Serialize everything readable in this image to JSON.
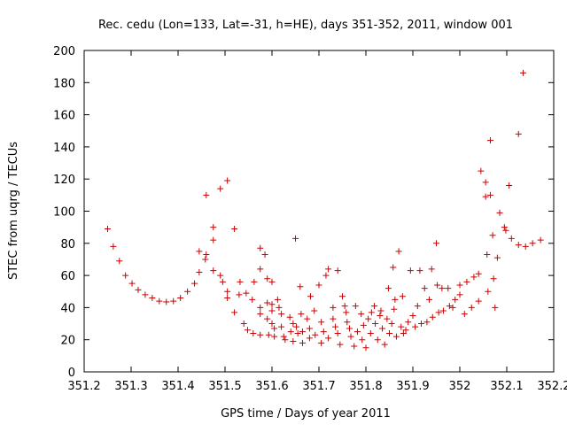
{
  "chart_data": {
    "type": "scatter",
    "title": "Rec. cedu (Lon=133, Lat=-31, h=HE), days 351-352, 2011, window 001",
    "xlabel": "GPS time / Days of year 2011",
    "ylabel": "STEC from uqrg / TECUs",
    "xlim": [
      351.2,
      352.2
    ],
    "ylim": [
      0,
      200
    ],
    "x_ticks": [
      "351.2",
      "351.3",
      "351.4",
      "351.5",
      "351.6",
      "351.7",
      "351.8",
      "351.9",
      "352",
      "352.1",
      "352.2"
    ],
    "y_ticks": [
      "0",
      "20",
      "40",
      "60",
      "80",
      "100",
      "120",
      "140",
      "160",
      "180",
      "200"
    ],
    "grid": false,
    "legend": "none",
    "marker": "+",
    "color": "#cc0000",
    "points": [
      [
        351.25,
        89
      ],
      [
        351.262,
        78
      ],
      [
        351.275,
        69
      ],
      [
        351.288,
        60
      ],
      [
        351.302,
        55
      ],
      [
        351.315,
        51
      ],
      [
        351.33,
        48
      ],
      [
        351.345,
        46
      ],
      [
        351.36,
        44
      ],
      [
        351.375,
        43.5
      ],
      [
        351.39,
        44
      ],
      [
        351.405,
        46
      ],
      [
        351.42,
        50
      ],
      [
        351.435,
        55
      ],
      [
        351.445,
        62
      ],
      [
        351.445,
        75
      ],
      [
        351.458,
        70
      ],
      [
        351.46,
        73
      ],
      [
        351.46,
        110
      ],
      [
        351.475,
        90
      ],
      [
        351.475,
        82
      ],
      [
        351.475,
        63
      ],
      [
        351.49,
        114
      ],
      [
        351.49,
        60
      ],
      [
        351.495,
        56
      ],
      [
        351.505,
        119
      ],
      [
        351.505,
        50
      ],
      [
        351.505,
        46
      ],
      [
        351.52,
        89
      ],
      [
        351.52,
        37
      ],
      [
        351.53,
        48
      ],
      [
        351.532,
        56
      ],
      [
        351.54,
        30
      ],
      [
        351.545,
        49
      ],
      [
        351.548,
        26
      ],
      [
        351.558,
        45
      ],
      [
        351.56,
        24
      ],
      [
        351.562,
        56
      ],
      [
        351.575,
        77
      ],
      [
        351.575,
        64
      ],
      [
        351.575,
        40
      ],
      [
        351.575,
        36
      ],
      [
        351.575,
        23
      ],
      [
        351.585,
        73
      ],
      [
        351.59,
        58
      ],
      [
        351.59,
        43
      ],
      [
        351.59,
        33
      ],
      [
        351.593,
        23
      ],
      [
        351.6,
        56
      ],
      [
        351.6,
        42
      ],
      [
        351.6,
        38
      ],
      [
        351.6,
        30
      ],
      [
        351.605,
        27
      ],
      [
        351.605,
        22
      ],
      [
        351.612,
        45
      ],
      [
        351.615,
        40
      ],
      [
        351.62,
        36
      ],
      [
        351.62,
        28
      ],
      [
        351.625,
        22
      ],
      [
        351.628,
        20
      ],
      [
        351.638,
        34
      ],
      [
        351.64,
        25
      ],
      [
        351.645,
        30
      ],
      [
        351.645,
        19
      ],
      [
        351.65,
        83
      ],
      [
        351.652,
        28
      ],
      [
        351.655,
        24
      ],
      [
        351.66,
        53
      ],
      [
        351.662,
        36
      ],
      [
        351.665,
        25
      ],
      [
        351.665,
        18
      ],
      [
        351.675,
        33
      ],
      [
        351.68,
        27
      ],
      [
        351.68,
        21
      ],
      [
        351.682,
        47
      ],
      [
        351.69,
        38
      ],
      [
        351.692,
        23
      ],
      [
        351.7,
        54
      ],
      [
        351.705,
        31
      ],
      [
        351.705,
        18
      ],
      [
        351.71,
        25
      ],
      [
        351.715,
        60
      ],
      [
        351.72,
        64
      ],
      [
        351.72,
        21
      ],
      [
        351.73,
        40
      ],
      [
        351.73,
        33
      ],
      [
        351.735,
        28
      ],
      [
        351.74,
        63
      ],
      [
        351.74,
        24
      ],
      [
        351.745,
        17
      ],
      [
        351.75,
        47
      ],
      [
        351.755,
        41
      ],
      [
        351.758,
        37
      ],
      [
        351.76,
        31
      ],
      [
        351.765,
        27
      ],
      [
        351.768,
        22
      ],
      [
        351.775,
        16
      ],
      [
        351.778,
        41
      ],
      [
        351.782,
        25
      ],
      [
        351.79,
        36
      ],
      [
        351.792,
        20
      ],
      [
        351.795,
        29
      ],
      [
        351.8,
        15
      ],
      [
        351.805,
        33
      ],
      [
        351.81,
        24
      ],
      [
        351.812,
        37
      ],
      [
        351.818,
        41
      ],
      [
        351.82,
        30
      ],
      [
        351.825,
        20
      ],
      [
        351.83,
        35
      ],
      [
        351.832,
        38
      ],
      [
        351.835,
        27
      ],
      [
        351.84,
        17
      ],
      [
        351.845,
        33
      ],
      [
        351.848,
        52
      ],
      [
        351.85,
        24
      ],
      [
        351.855,
        30
      ],
      [
        351.858,
        65
      ],
      [
        351.86,
        39
      ],
      [
        351.862,
        45
      ],
      [
        351.865,
        22
      ],
      [
        351.87,
        75
      ],
      [
        351.875,
        28
      ],
      [
        351.878,
        47
      ],
      [
        351.88,
        24
      ],
      [
        351.885,
        26
      ],
      [
        351.89,
        31
      ],
      [
        351.895,
        63
      ],
      [
        351.9,
        35
      ],
      [
        351.905,
        28
      ],
      [
        351.91,
        41
      ],
      [
        351.915,
        63
      ],
      [
        351.918,
        30
      ],
      [
        351.925,
        52
      ],
      [
        351.93,
        31
      ],
      [
        351.935,
        45
      ],
      [
        351.94,
        64
      ],
      [
        351.942,
        34
      ],
      [
        351.95,
        80
      ],
      [
        351.952,
        54
      ],
      [
        351.955,
        37
      ],
      [
        351.962,
        52
      ],
      [
        351.965,
        38
      ],
      [
        351.975,
        52
      ],
      [
        351.978,
        41
      ],
      [
        351.985,
        40
      ],
      [
        351.99,
        45
      ],
      [
        352.0,
        48
      ],
      [
        352.0,
        54
      ],
      [
        352.01,
        36
      ],
      [
        352.015,
        56
      ],
      [
        352.025,
        40
      ],
      [
        352.03,
        59
      ],
      [
        352.04,
        44
      ],
      [
        352.04,
        61
      ],
      [
        352.045,
        125
      ],
      [
        352.055,
        118
      ],
      [
        352.055,
        109
      ],
      [
        352.058,
        73
      ],
      [
        352.06,
        50
      ],
      [
        352.065,
        144
      ],
      [
        352.065,
        110
      ],
      [
        352.07,
        85
      ],
      [
        352.072,
        58
      ],
      [
        352.075,
        40
      ],
      [
        352.08,
        71
      ],
      [
        352.085,
        99
      ],
      [
        352.095,
        90
      ],
      [
        352.098,
        88
      ],
      [
        352.105,
        116
      ],
      [
        352.11,
        83
      ],
      [
        352.125,
        148
      ],
      [
        352.125,
        79
      ],
      [
        352.135,
        186
      ],
      [
        352.14,
        78
      ],
      [
        352.155,
        80
      ],
      [
        352.172,
        82
      ]
    ]
  }
}
